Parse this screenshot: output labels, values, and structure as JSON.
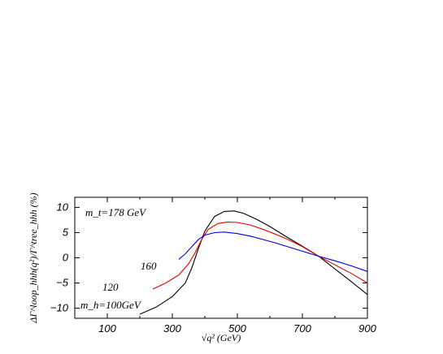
{
  "chart_data": {
    "type": "line",
    "xlabel": "√q² (GeV)",
    "ylabel": "ΔΓ^loop_hhh(q²)/Γ^tree_hhh (%)",
    "xlim": [
      0,
      900
    ],
    "ylim": [
      -12,
      12
    ],
    "x_ticks": [
      100,
      300,
      500,
      700,
      900
    ],
    "y_ticks": [
      10,
      5,
      0,
      -5,
      -10
    ],
    "x_tick_labels": [
      "100",
      "300",
      "500",
      "700",
      "900"
    ],
    "y_tick_labels": [
      "10",
      "5",
      "0",
      "−5",
      "−10"
    ],
    "grid": false,
    "annotations": {
      "top_left": "m_t=178 GeV",
      "bottom_left": "m_h=100GeV",
      "curve_160": "160",
      "curve_120": "120"
    },
    "series": [
      {
        "name": "100",
        "color": "#000000",
        "x": [
          200,
          250,
          300,
          340,
          360,
          380,
          400,
          430,
          460,
          490,
          520,
          560,
          600,
          650,
          700,
          750,
          800,
          850,
          900
        ],
        "y": [
          -11.2,
          -9.8,
          -7.7,
          -5.0,
          -2.0,
          1.8,
          5.3,
          8.2,
          9.2,
          9.3,
          8.8,
          7.6,
          6.2,
          4.2,
          2.3,
          0.3,
          -2.2,
          -4.7,
          -7.3
        ]
      },
      {
        "name": "120",
        "color": "#e00000",
        "x": [
          240,
          280,
          320,
          350,
          370,
          390,
          410,
          440,
          470,
          500,
          540,
          580,
          620,
          660,
          700,
          750,
          800,
          850,
          900
        ],
        "y": [
          -6.2,
          -5.0,
          -3.4,
          -1.2,
          1.0,
          3.6,
          5.6,
          6.8,
          7.1,
          7.0,
          6.5,
          5.6,
          4.6,
          3.5,
          2.2,
          0.3,
          -1.4,
          -3.1,
          -5.0
        ]
      },
      {
        "name": "160",
        "color": "#0000e0",
        "x": [
          320,
          340,
          360,
          380,
          400,
          430,
          460,
          500,
          540,
          580,
          620,
          660,
          700,
          750,
          800,
          850,
          900
        ],
        "y": [
          -0.3,
          0.8,
          2.2,
          3.6,
          4.5,
          5.0,
          5.1,
          4.8,
          4.3,
          3.6,
          2.9,
          2.1,
          1.3,
          0.3,
          -0.6,
          -1.6,
          -2.7
        ]
      }
    ]
  }
}
